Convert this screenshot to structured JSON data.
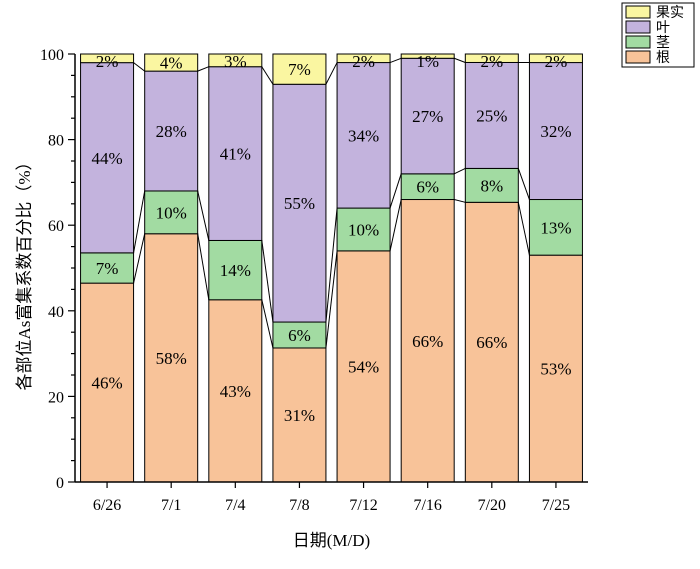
{
  "chart_data": {
    "type": "stacked-bar",
    "title": "",
    "xlabel": "日期(M/D)",
    "ylabel": "各部位As富集系数百分比（%）",
    "ylim": [
      0,
      100
    ],
    "yticks": [
      0,
      20,
      40,
      60,
      80,
      100
    ],
    "categories": [
      "6/26",
      "7/1",
      "7/4",
      "7/8",
      "7/12",
      "7/16",
      "7/20",
      "7/25"
    ],
    "series": [
      {
        "name": "根",
        "color": "#F8C399",
        "values": [
          46,
          58,
          43,
          31,
          54,
          66,
          66,
          53
        ],
        "labels": [
          "46%",
          "58%",
          "43%",
          "31%",
          "54%",
          "66%",
          "66%",
          "53%"
        ]
      },
      {
        "name": "茎",
        "color": "#A2DBA2",
        "values": [
          7,
          10,
          14,
          6,
          10,
          6,
          8,
          13
        ],
        "labels": [
          "7%",
          "10%",
          "14%",
          "6%",
          "10%",
          "6%",
          "8%",
          "13%"
        ]
      },
      {
        "name": "叶",
        "color": "#C3B3DD",
        "values": [
          44,
          28,
          41,
          55,
          34,
          27,
          25,
          32
        ],
        "labels": [
          "44%",
          "28%",
          "41%",
          "55%",
          "34%",
          "27%",
          "25%",
          "32%"
        ]
      },
      {
        "name": "果实",
        "color": "#FAF6A1",
        "values": [
          2,
          4,
          3,
          7,
          2,
          1,
          2,
          2
        ],
        "labels": [
          "2%",
          "4%",
          "3%",
          "7%",
          "2%",
          "1%",
          "2%",
          "2%"
        ]
      }
    ],
    "legend": {
      "position": "top-right",
      "order": [
        "果实",
        "叶",
        "茎",
        "根"
      ]
    },
    "grid": false
  }
}
